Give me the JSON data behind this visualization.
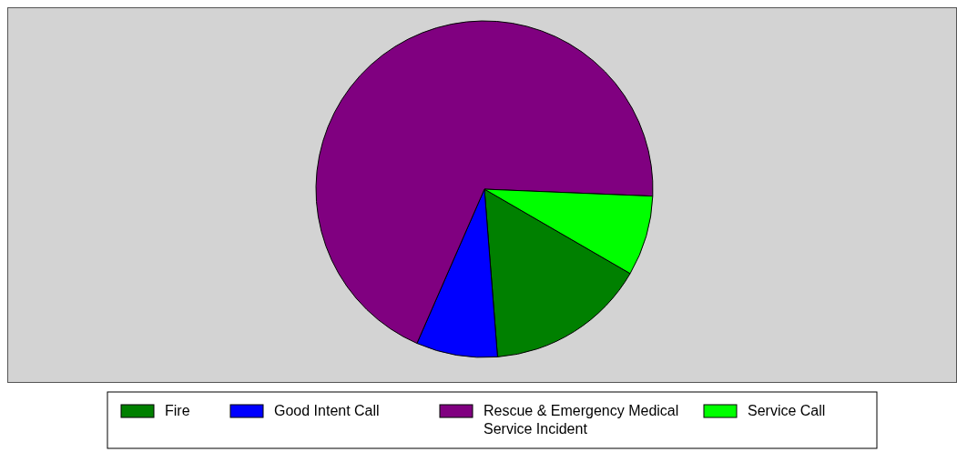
{
  "chart_data": {
    "type": "pie",
    "categories": [
      "Fire",
      "Good Intent Call",
      "Rescue & Emergency Medical Service Incident",
      "Service Call"
    ],
    "values": [
      15.4,
      7.8,
      69.1,
      7.7
    ],
    "colors": [
      "#008000",
      "#0000ff",
      "#800080",
      "#00ff00"
    ],
    "legend": "bottom"
  }
}
